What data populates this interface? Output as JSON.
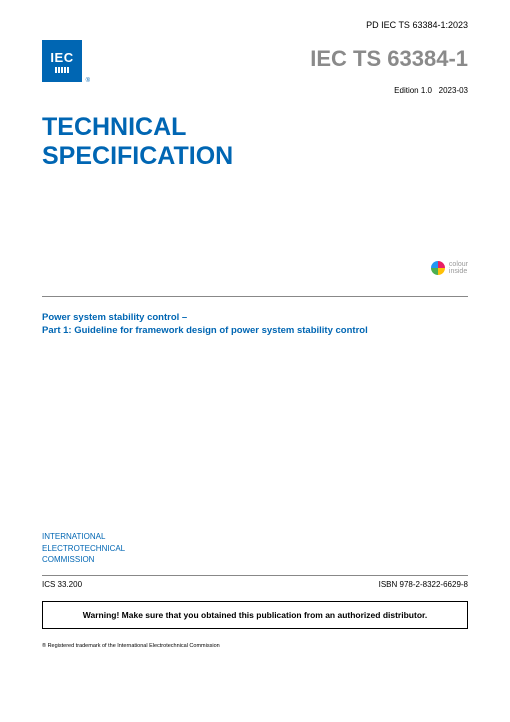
{
  "header": {
    "reference": "PD IEC TS 63384-1:2023",
    "logo_text": "IEC",
    "doc_number": "IEC TS 63384-1",
    "edition": "Edition 1.0",
    "date": "2023-03"
  },
  "title": {
    "line1": "TECHNICAL",
    "line2": "SPECIFICATION"
  },
  "colour_inside": {
    "line1": "colour",
    "line2": "inside"
  },
  "subject": {
    "line1": "Power system stability control –",
    "line2": "Part 1: Guideline for framework design of power system stability control"
  },
  "organization": {
    "line1": "INTERNATIONAL",
    "line2": "ELECTROTECHNICAL",
    "line3": "COMMISSION"
  },
  "footer": {
    "ics": "ICS 33.200",
    "isbn": "ISBN 978-2-8322-6629-8",
    "warning": "Warning! Make sure that you obtained this publication from an authorized distributor.",
    "trademark": "® Registered trademark of the International Electrotechnical Commission"
  },
  "colors": {
    "primary": "#0066b3",
    "grey": "#8a8a8a"
  }
}
